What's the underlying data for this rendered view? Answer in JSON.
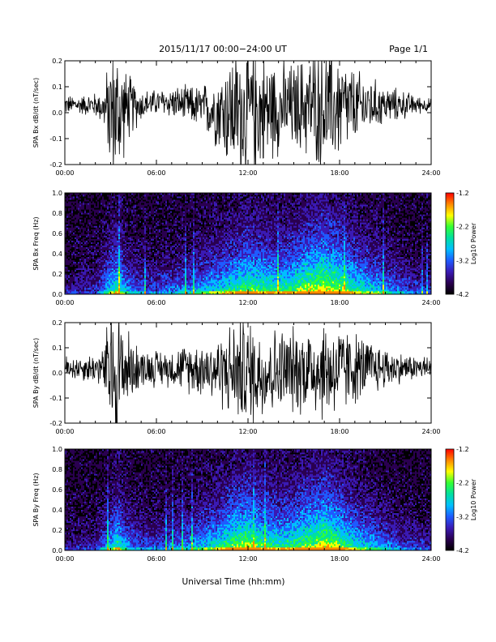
{
  "header": {
    "title": "2015/11/17   00:00−24:00 UT",
    "page": "Page 1/1"
  },
  "footer": {
    "xlabel": "Universal Time (hh:mm)"
  },
  "colors": {
    "trace": "#000000",
    "colormap": [
      "#000000",
      "#2a0050",
      "#3a1ab4",
      "#1f5bff",
      "#00bfff",
      "#00e0a0",
      "#33ff33",
      "#ffff00",
      "#ff8800",
      "#ff0000"
    ]
  },
  "chart_data": [
    {
      "type": "line",
      "panel": "bx-waveform",
      "ylabel": "SPA Bx dB/dt (nT/sec)",
      "xlim": [
        "00:00",
        "24:00"
      ],
      "ylim": [
        -0.2,
        0.2
      ],
      "xticks": [
        "00:00",
        "06:00",
        "12:00",
        "18:00",
        "24:00"
      ],
      "yticks": [
        "-0.2",
        "-0.1",
        "0.0",
        "0.1",
        "0.2"
      ],
      "series": [
        {
          "x_hours": [
            0,
            1,
            2,
            2.5,
            3,
            3.5,
            4,
            5,
            6,
            7,
            8,
            9,
            10,
            11,
            12,
            13,
            14,
            15,
            16,
            17,
            18,
            19,
            20,
            21,
            22,
            23,
            24
          ],
          "center": [
            0.03,
            0.03,
            0.03,
            0.02,
            0.0,
            -0.01,
            0.02,
            0.03,
            0.04,
            0.04,
            0.03,
            0.02,
            0.01,
            0.0,
            0.0,
            0.01,
            0.02,
            0.02,
            0.03,
            0.02,
            0.02,
            0.02,
            0.03,
            0.03,
            0.03,
            0.03,
            0.03
          ],
          "amplitude": [
            0.03,
            0.03,
            0.04,
            0.05,
            0.2,
            0.22,
            0.12,
            0.05,
            0.04,
            0.05,
            0.06,
            0.07,
            0.12,
            0.2,
            0.22,
            0.18,
            0.15,
            0.14,
            0.17,
            0.2,
            0.17,
            0.12,
            0.09,
            0.06,
            0.05,
            0.03,
            0.02
          ]
        }
      ]
    },
    {
      "type": "heatmap",
      "panel": "bx-spectrogram",
      "ylabel": "SPA Bx Freq (Hz)",
      "xlim": [
        "00:00",
        "24:00"
      ],
      "ylim": [
        0.0,
        1.0
      ],
      "xticks": [
        "00:00",
        "06:00",
        "12:00",
        "18:00",
        "24:00"
      ],
      "yticks": [
        "0.0",
        "0.2",
        "0.4",
        "0.6",
        "0.8",
        "1.0"
      ],
      "colorbar": {
        "label": "Log10 Power",
        "range": [
          -4.2,
          -1.2
        ],
        "ticks": [
          "-1.2",
          "-2.2",
          "-3.2",
          "-4.2"
        ]
      },
      "activity_hours": [
        0,
        2,
        3,
        3.5,
        4,
        5,
        6,
        8,
        10,
        11,
        12,
        13,
        14,
        15,
        16,
        17,
        18,
        19,
        20,
        21,
        22,
        23,
        24
      ],
      "activity_level": [
        0.15,
        0.2,
        0.55,
        0.7,
        0.45,
        0.3,
        0.3,
        0.4,
        0.55,
        0.65,
        0.75,
        0.7,
        0.65,
        0.7,
        0.85,
        0.9,
        0.8,
        0.65,
        0.55,
        0.45,
        0.35,
        0.25,
        0.2
      ]
    },
    {
      "type": "line",
      "panel": "by-waveform",
      "ylabel": "SPA By dB/dt (nT/sec)",
      "xlim": [
        "00:00",
        "24:00"
      ],
      "ylim": [
        -0.2,
        0.2
      ],
      "xticks": [
        "00:00",
        "06:00",
        "12:00",
        "18:00",
        "24:00"
      ],
      "yticks": [
        "-0.2",
        "-0.1",
        "0.0",
        "0.1",
        "0.2"
      ],
      "series": [
        {
          "x_hours": [
            0,
            1,
            2,
            2.5,
            3,
            3.5,
            4,
            5,
            6,
            7,
            8,
            9,
            10,
            11,
            12,
            13,
            14,
            15,
            16,
            17,
            18,
            19,
            20,
            21,
            22,
            23,
            24
          ],
          "center": [
            0.02,
            0.02,
            0.02,
            0.02,
            0.0,
            0.0,
            0.02,
            0.02,
            0.02,
            0.02,
            0.02,
            0.02,
            0.01,
            0.01,
            0.0,
            0.0,
            0.01,
            0.01,
            0.02,
            0.01,
            0.01,
            0.02,
            0.02,
            0.02,
            0.02,
            0.02,
            0.02
          ],
          "amplitude": [
            0.04,
            0.04,
            0.05,
            0.06,
            0.24,
            0.25,
            0.13,
            0.06,
            0.06,
            0.06,
            0.08,
            0.09,
            0.11,
            0.16,
            0.18,
            0.15,
            0.14,
            0.14,
            0.15,
            0.17,
            0.15,
            0.12,
            0.09,
            0.07,
            0.05,
            0.04,
            0.04
          ]
        }
      ]
    },
    {
      "type": "heatmap",
      "panel": "by-spectrogram",
      "ylabel": "SPA By Freq (Hz)",
      "xlim": [
        "00:00",
        "24:00"
      ],
      "ylim": [
        0.0,
        1.0
      ],
      "xticks": [
        "00:00",
        "06:00",
        "12:00",
        "18:00",
        "24:00"
      ],
      "yticks": [
        "0.0",
        "0.2",
        "0.4",
        "0.6",
        "0.8",
        "1.0"
      ],
      "colorbar": {
        "label": "Log10 Power",
        "range": [
          -4.2,
          -1.2
        ],
        "ticks": [
          "-1.2",
          "-2.2",
          "-3.2",
          "-4.2"
        ]
      },
      "activity_hours": [
        0,
        2,
        3,
        3.5,
        4,
        5,
        6,
        8,
        10,
        11,
        12,
        13,
        14,
        15,
        16,
        17,
        18,
        19,
        20,
        21,
        22,
        23,
        24
      ],
      "activity_level": [
        0.15,
        0.2,
        0.5,
        0.65,
        0.45,
        0.3,
        0.3,
        0.4,
        0.6,
        0.75,
        0.85,
        0.7,
        0.65,
        0.7,
        0.8,
        0.9,
        0.75,
        0.6,
        0.5,
        0.4,
        0.3,
        0.25,
        0.2
      ]
    }
  ]
}
